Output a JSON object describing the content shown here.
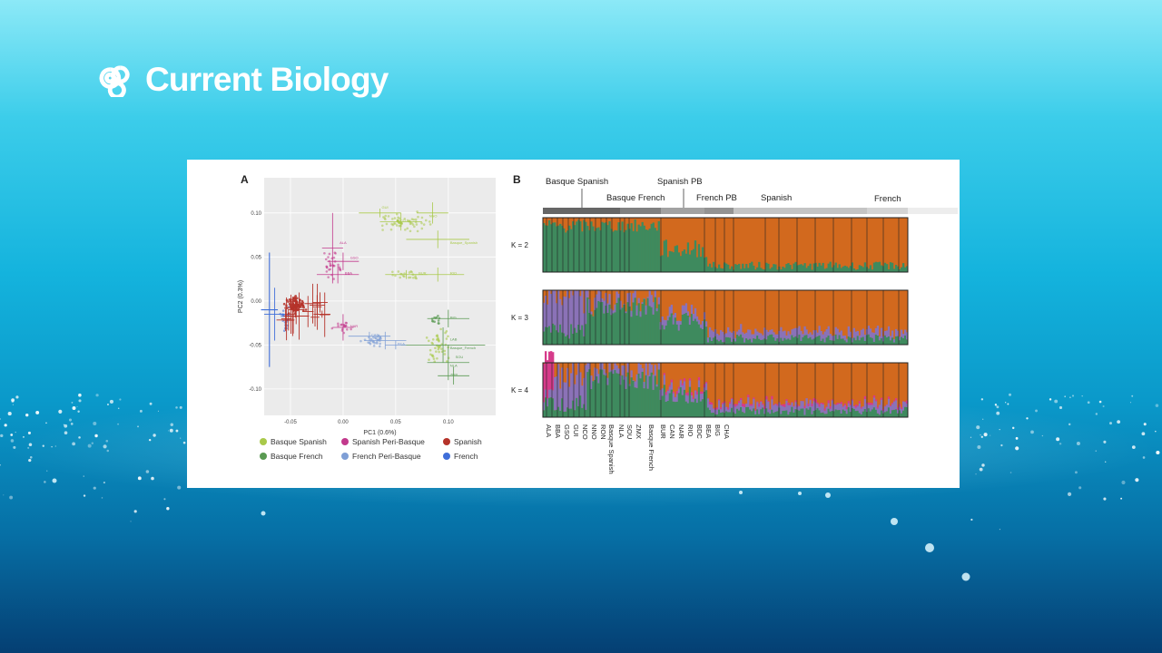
{
  "brand": {
    "name": "Current Biology",
    "logo": "current-biology-logo-icon"
  },
  "colors": {
    "basque_spanish": "#a9c94a",
    "basque_french": "#5a9a52",
    "spanish_peri_basque": "#c2398c",
    "french_peri_basque": "#7f9fd6",
    "spanish": "#b5332a",
    "french": "#3f6ed9",
    "admixture_green": "#3e8a5e",
    "admixture_orange": "#d2691e",
    "admixture_purple": "#8a72b8",
    "admixture_magenta": "#d63a8a"
  },
  "figure": {
    "panel_a": {
      "letter": "A",
      "xlabel": "PC1 (0.6%)",
      "ylabel": "PC2 (0.3%)",
      "xticks": [
        "-0.05",
        "0.00",
        "0.05",
        "0.10"
      ],
      "yticks": [
        "0.10",
        "0.05",
        "0.00",
        "-0.05",
        "-0.10"
      ],
      "point_labels": [
        "ALA",
        "BBA",
        "GSO",
        "GUI",
        "NCO",
        "NNO",
        "Basque_Spanish",
        "BUR",
        "RIO",
        "NAR",
        "CAN",
        "BEA",
        "BIG",
        "LAB",
        "SOU",
        "ZMX",
        "Basque_French",
        "NLA"
      ],
      "legend": [
        {
          "label": "Basque Spanish",
          "color_key": "basque_spanish"
        },
        {
          "label": "Spanish Peri-Basque",
          "color_key": "spanish_peri_basque"
        },
        {
          "label": "Spanish",
          "color_key": "spanish"
        },
        {
          "label": "Basque French",
          "color_key": "basque_french"
        },
        {
          "label": "French Peri-Basque",
          "color_key": "french_peri_basque"
        },
        {
          "label": "French",
          "color_key": "french"
        }
      ]
    },
    "panel_b": {
      "letter": "B",
      "groups": [
        {
          "label": "Basque Spanish"
        },
        {
          "label": "Basque French"
        },
        {
          "label": "Spanish PB"
        },
        {
          "label": "French PB"
        },
        {
          "label": "Spanish"
        },
        {
          "label": "French"
        }
      ],
      "k_labels": [
        "K = 2",
        "K = 3",
        "K = 4"
      ],
      "population_labels": [
        "ALA",
        "BBA",
        "GSO",
        "GUI",
        "NCO",
        "NNO",
        "RON",
        "Basque Spanish",
        "NLA",
        "SOU",
        "ZMX",
        "Basque French",
        "BUR",
        "CAN",
        "NAR",
        "RIO",
        "BDC",
        "BEA",
        "BIG",
        "CHA"
      ]
    }
  }
}
